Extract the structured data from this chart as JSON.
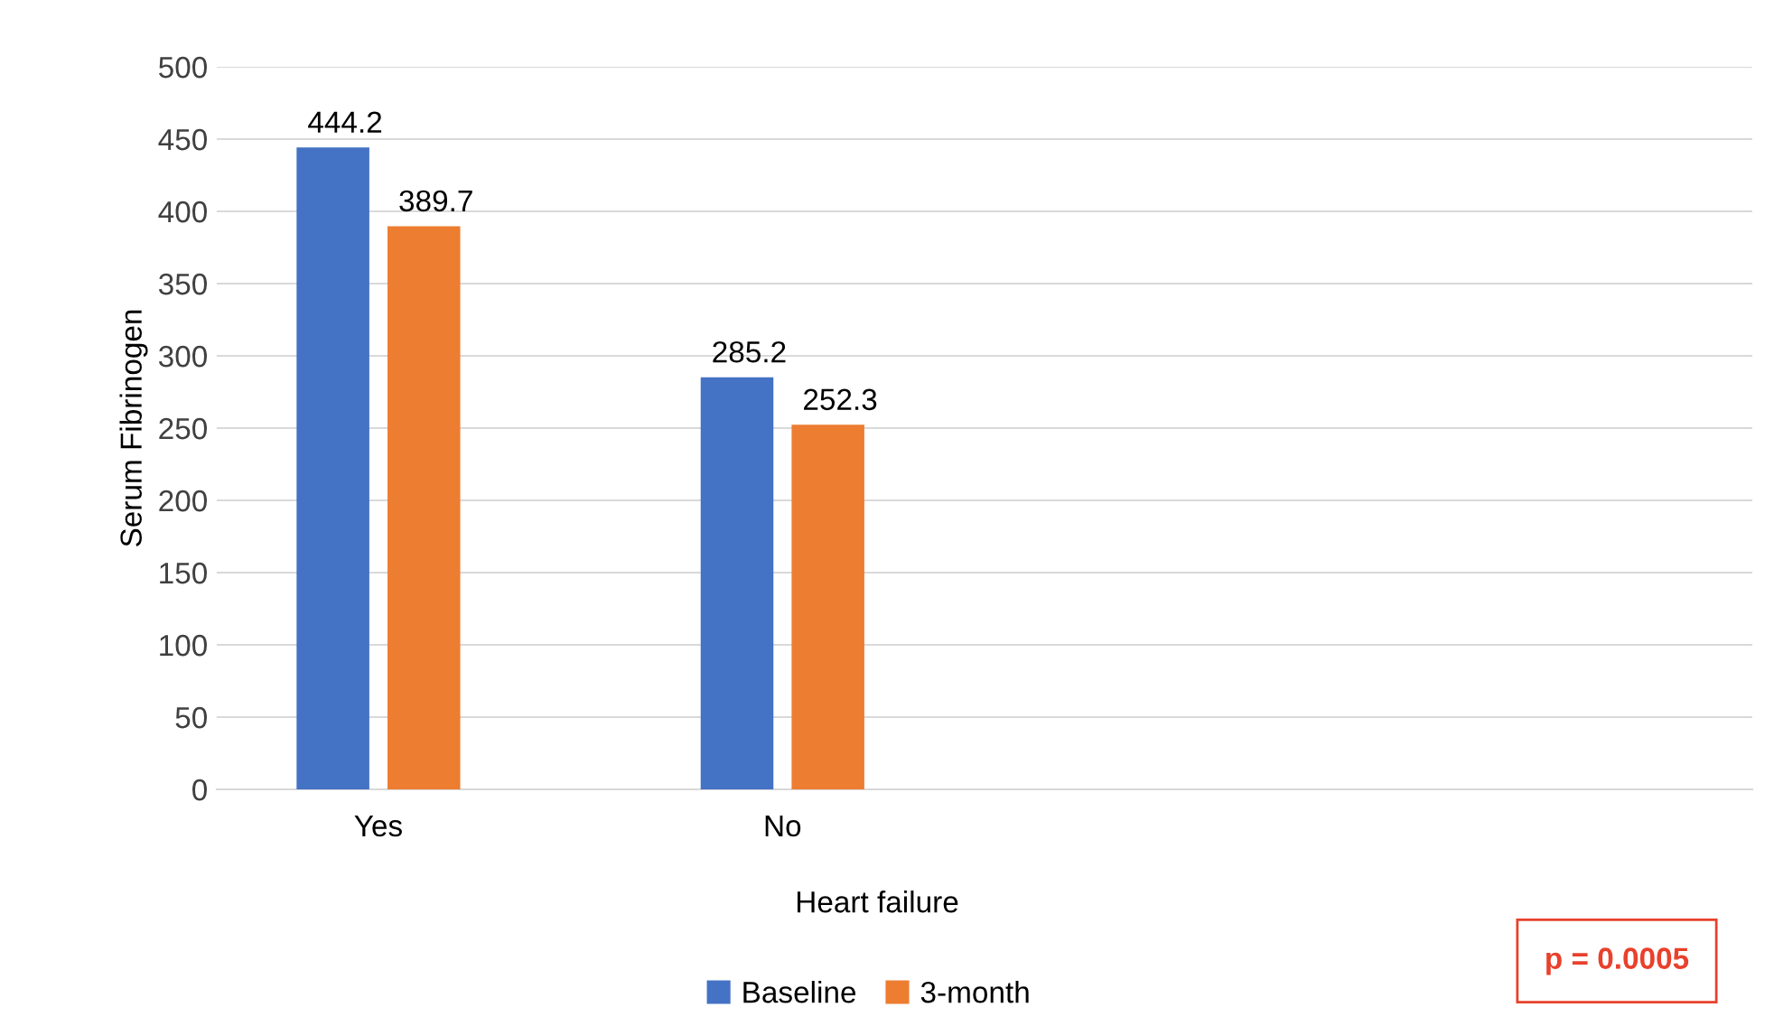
{
  "chart_data": {
    "type": "bar",
    "xlabel": "Heart failure",
    "ylabel": "Serum Fibrinogen",
    "categories": [
      "Yes",
      "No",
      null,
      null
    ],
    "series": [
      {
        "name": "Baseline",
        "color": "#4472c4",
        "values": [
          444.2,
          285.2,
          null,
          null
        ]
      },
      {
        "name": "3-month",
        "color": "#ed7d31",
        "values": [
          389.7,
          252.3,
          null,
          null
        ]
      }
    ],
    "ylim": [
      0,
      500
    ],
    "yticks": [
      0,
      50,
      100,
      150,
      200,
      250,
      300,
      350,
      400,
      450,
      500
    ],
    "grid": "y",
    "legend": "bottom",
    "data_labels": true,
    "annotations": [
      "p = 0.0005"
    ]
  }
}
